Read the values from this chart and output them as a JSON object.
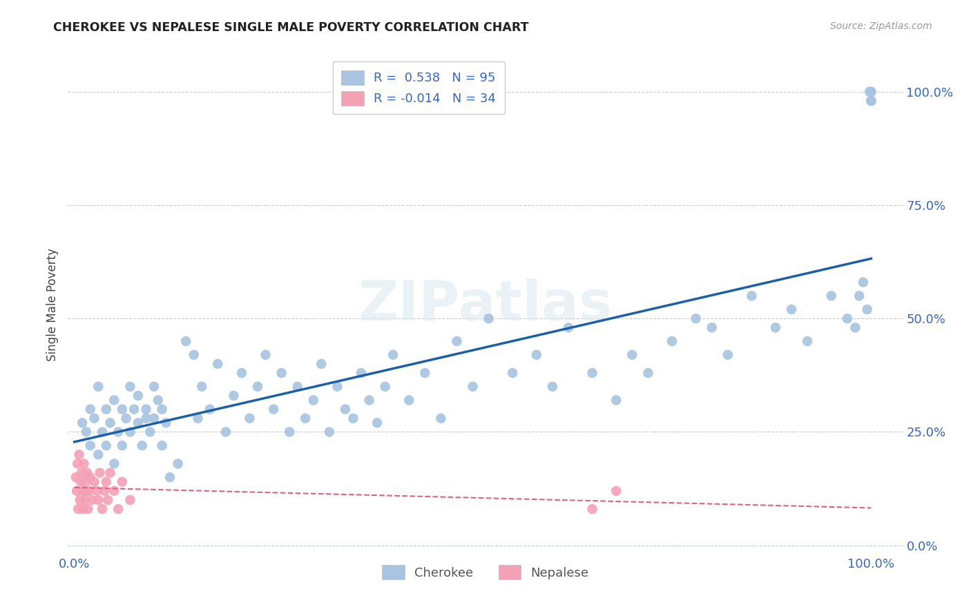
{
  "title": "CHEROKEE VS NEPALESE SINGLE MALE POVERTY CORRELATION CHART",
  "source": "Source: ZipAtlas.com",
  "ylabel": "Single Male Poverty",
  "ytick_values": [
    0.0,
    0.25,
    0.5,
    0.75,
    1.0
  ],
  "xtick_values": [
    0.0,
    1.0
  ],
  "cherokee_R": 0.538,
  "cherokee_N": 95,
  "nepalese_R": -0.014,
  "nepalese_N": 34,
  "cherokee_color": "#a8c4e0",
  "cherokee_line_color": "#1a5fa8",
  "nepalese_color": "#f4a0b5",
  "nepalese_line_color": "#e06080",
  "watermark": "ZIPatlas",
  "background_color": "#ffffff",
  "cherokee_x": [
    0.01,
    0.015,
    0.02,
    0.02,
    0.025,
    0.03,
    0.03,
    0.035,
    0.04,
    0.04,
    0.045,
    0.05,
    0.05,
    0.055,
    0.06,
    0.06,
    0.065,
    0.07,
    0.07,
    0.075,
    0.08,
    0.08,
    0.085,
    0.09,
    0.09,
    0.095,
    0.1,
    0.1,
    0.105,
    0.11,
    0.11,
    0.115,
    0.12,
    0.13,
    0.14,
    0.15,
    0.155,
    0.16,
    0.17,
    0.18,
    0.19,
    0.2,
    0.21,
    0.22,
    0.23,
    0.24,
    0.25,
    0.26,
    0.27,
    0.28,
    0.29,
    0.3,
    0.31,
    0.32,
    0.33,
    0.34,
    0.35,
    0.36,
    0.37,
    0.38,
    0.39,
    0.4,
    0.42,
    0.44,
    0.46,
    0.48,
    0.5,
    0.52,
    0.55,
    0.58,
    0.6,
    0.62,
    0.65,
    0.68,
    0.7,
    0.72,
    0.75,
    0.78,
    0.8,
    0.82,
    0.85,
    0.88,
    0.9,
    0.92,
    0.95,
    0.97,
    0.98,
    0.985,
    0.99,
    0.995,
    0.998,
    1.0,
    1.0,
    1.0,
    1.0
  ],
  "cherokee_y": [
    0.27,
    0.25,
    0.22,
    0.3,
    0.28,
    0.2,
    0.35,
    0.25,
    0.3,
    0.22,
    0.27,
    0.32,
    0.18,
    0.25,
    0.3,
    0.22,
    0.28,
    0.35,
    0.25,
    0.3,
    0.27,
    0.33,
    0.22,
    0.3,
    0.28,
    0.25,
    0.35,
    0.28,
    0.32,
    0.22,
    0.3,
    0.27,
    0.15,
    0.18,
    0.45,
    0.42,
    0.28,
    0.35,
    0.3,
    0.4,
    0.25,
    0.33,
    0.38,
    0.28,
    0.35,
    0.42,
    0.3,
    0.38,
    0.25,
    0.35,
    0.28,
    0.32,
    0.4,
    0.25,
    0.35,
    0.3,
    0.28,
    0.38,
    0.32,
    0.27,
    0.35,
    0.42,
    0.32,
    0.38,
    0.28,
    0.45,
    0.35,
    0.5,
    0.38,
    0.42,
    0.35,
    0.48,
    0.38,
    0.32,
    0.42,
    0.38,
    0.45,
    0.5,
    0.48,
    0.42,
    0.55,
    0.48,
    0.52,
    0.45,
    0.55,
    0.5,
    0.48,
    0.55,
    0.58,
    0.52,
    1.0,
    1.0,
    0.98,
    0.98,
    1.0
  ],
  "nepalese_x": [
    0.002,
    0.003,
    0.004,
    0.005,
    0.006,
    0.007,
    0.008,
    0.009,
    0.01,
    0.011,
    0.012,
    0.013,
    0.014,
    0.015,
    0.016,
    0.017,
    0.018,
    0.02,
    0.022,
    0.025,
    0.028,
    0.03,
    0.032,
    0.035,
    0.038,
    0.04,
    0.042,
    0.045,
    0.05,
    0.055,
    0.06,
    0.07,
    0.65,
    0.68
  ],
  "nepalese_y": [
    0.15,
    0.12,
    0.18,
    0.08,
    0.2,
    0.1,
    0.14,
    0.16,
    0.12,
    0.08,
    0.18,
    0.1,
    0.14,
    0.12,
    0.16,
    0.08,
    0.12,
    0.15,
    0.1,
    0.14,
    0.12,
    0.1,
    0.16,
    0.08,
    0.12,
    0.14,
    0.1,
    0.16,
    0.12,
    0.08,
    0.14,
    0.1,
    0.08,
    0.12
  ]
}
